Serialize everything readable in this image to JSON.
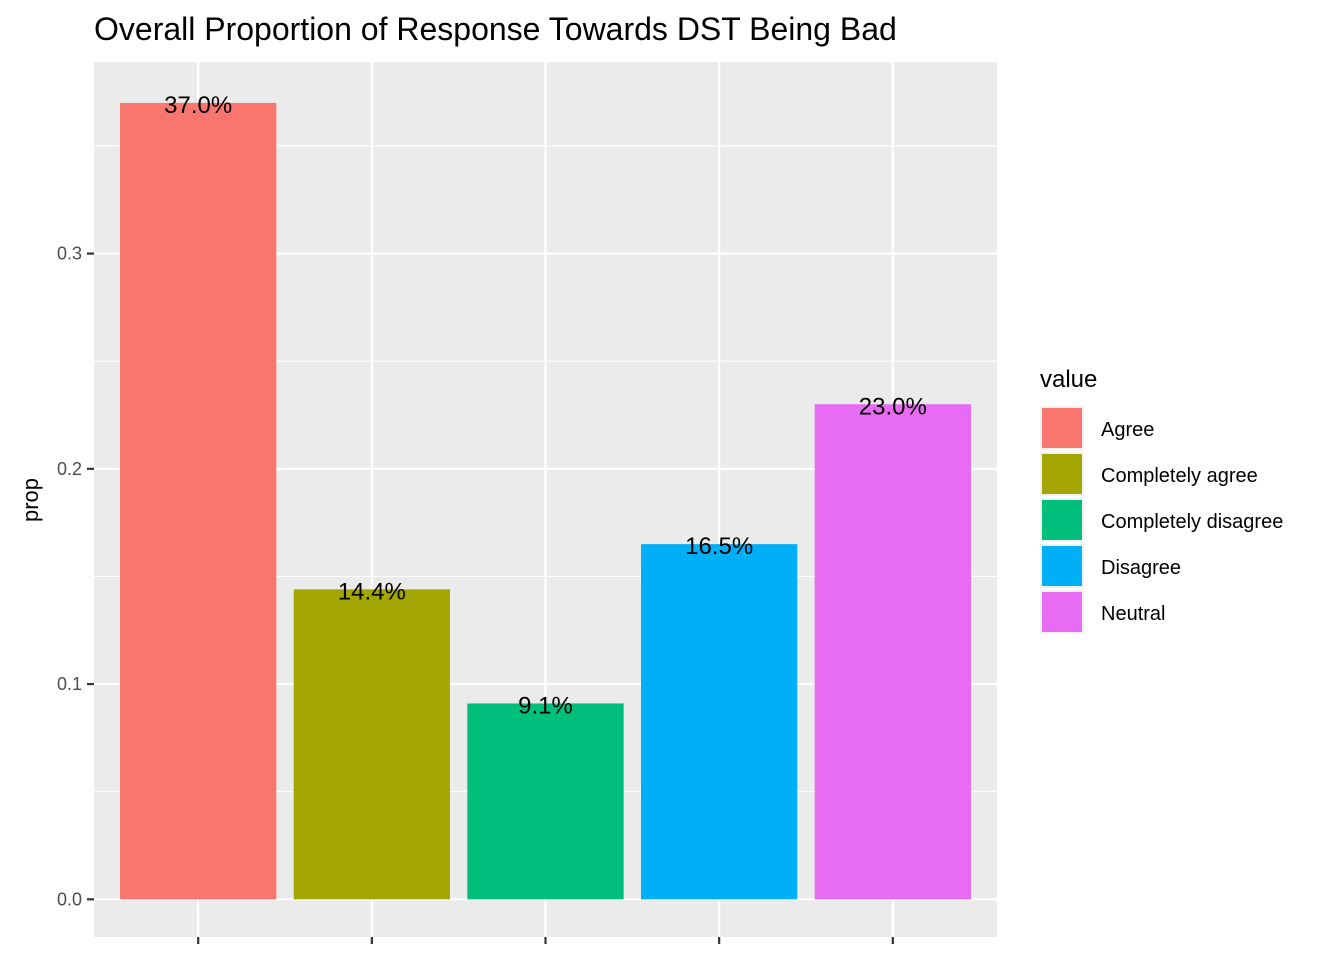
{
  "chart_data": {
    "type": "bar",
    "title": "Overall Proportion of Response Towards DST Being Bad",
    "xlabel": "",
    "ylabel": "prop",
    "ylim": [
      -0.0175,
      0.389
    ],
    "yticks": [
      0.0,
      0.1,
      0.2,
      0.3
    ],
    "ytick_labels": [
      "0.0",
      "0.1",
      "0.2",
      "0.3"
    ],
    "grid": true,
    "legend_title": "value",
    "legend_position": "right",
    "categories": [
      "Agree",
      "Completely agree",
      "Completely disagree",
      "Disagree",
      "Neutral"
    ],
    "values": [
      0.37,
      0.144,
      0.091,
      0.165,
      0.23
    ],
    "labels": [
      "37.0%",
      "14.4%",
      "9.1%",
      "16.5%",
      "23.0%"
    ],
    "colors": [
      "#F8766D",
      "#A3A500",
      "#00BF7D",
      "#00B0F6",
      "#E76BF3"
    ]
  }
}
